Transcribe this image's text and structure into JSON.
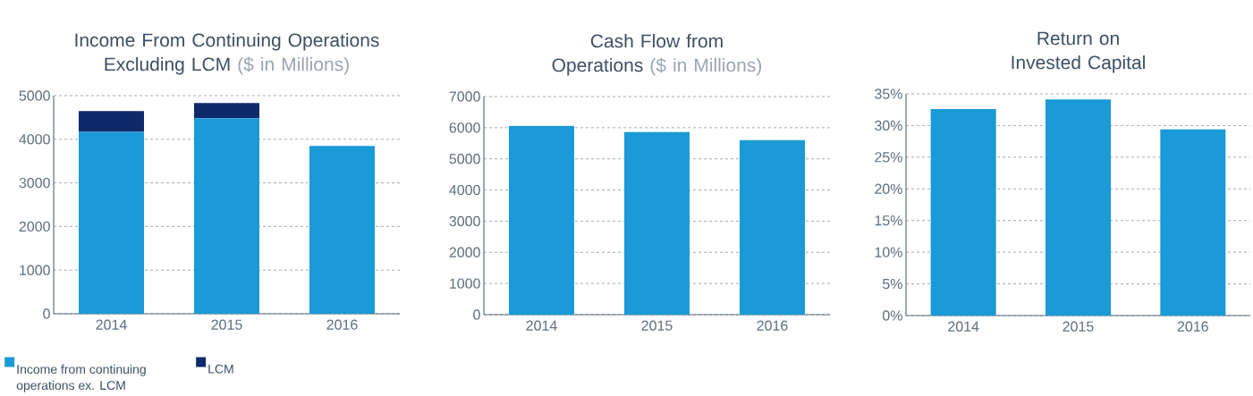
{
  "chart_data": [
    {
      "type": "bar",
      "title": "Income From Continuing Operations Excluding LCM",
      "subtitle": "($ in Millions)",
      "categories": [
        "2014",
        "2015",
        "2016"
      ],
      "stacked": true,
      "series": [
        {
          "name": "Income from continuing operations ex. LCM",
          "color": "#1a9ad6",
          "values": [
            4170,
            4480,
            3845
          ]
        },
        {
          "name": "LCM",
          "color": "#0f2a6b",
          "values": [
            475,
            350,
            null
          ]
        }
      ],
      "ylim": [
        0,
        5000
      ],
      "yticks": [
        0,
        1000,
        2000,
        3000,
        4000,
        5000
      ],
      "grid": "y",
      "legend": "bottom"
    },
    {
      "type": "bar",
      "title": "Cash Flow from Operations",
      "subtitle": "($ in Millions)",
      "categories": [
        "2014",
        "2015",
        "2016"
      ],
      "values": [
        6060,
        5860,
        5600
      ],
      "color": "#1a9ad6",
      "ylim": [
        0,
        7000
      ],
      "yticks": [
        0,
        1000,
        2000,
        3000,
        4000,
        5000,
        6000,
        7000
      ],
      "grid": "y"
    },
    {
      "type": "bar",
      "title": "Return on Invested Capital",
      "categories": [
        "2014",
        "2015",
        "2016"
      ],
      "values": [
        32.6,
        34.1,
        29.4
      ],
      "color": "#1a9ad6",
      "ylim": [
        0,
        35
      ],
      "yticks": [
        {
          "value": 0,
          "label": "0%"
        },
        {
          "value": 5,
          "label": "5%"
        },
        {
          "value": 10,
          "label": "10%"
        },
        {
          "value": 15,
          "label": "15%"
        },
        {
          "value": 20,
          "label": "20%"
        },
        {
          "value": 25,
          "label": "25%"
        },
        {
          "value": 30,
          "label": "30%"
        },
        {
          "value": 35,
          "label": "35%"
        }
      ],
      "grid": "y"
    }
  ]
}
